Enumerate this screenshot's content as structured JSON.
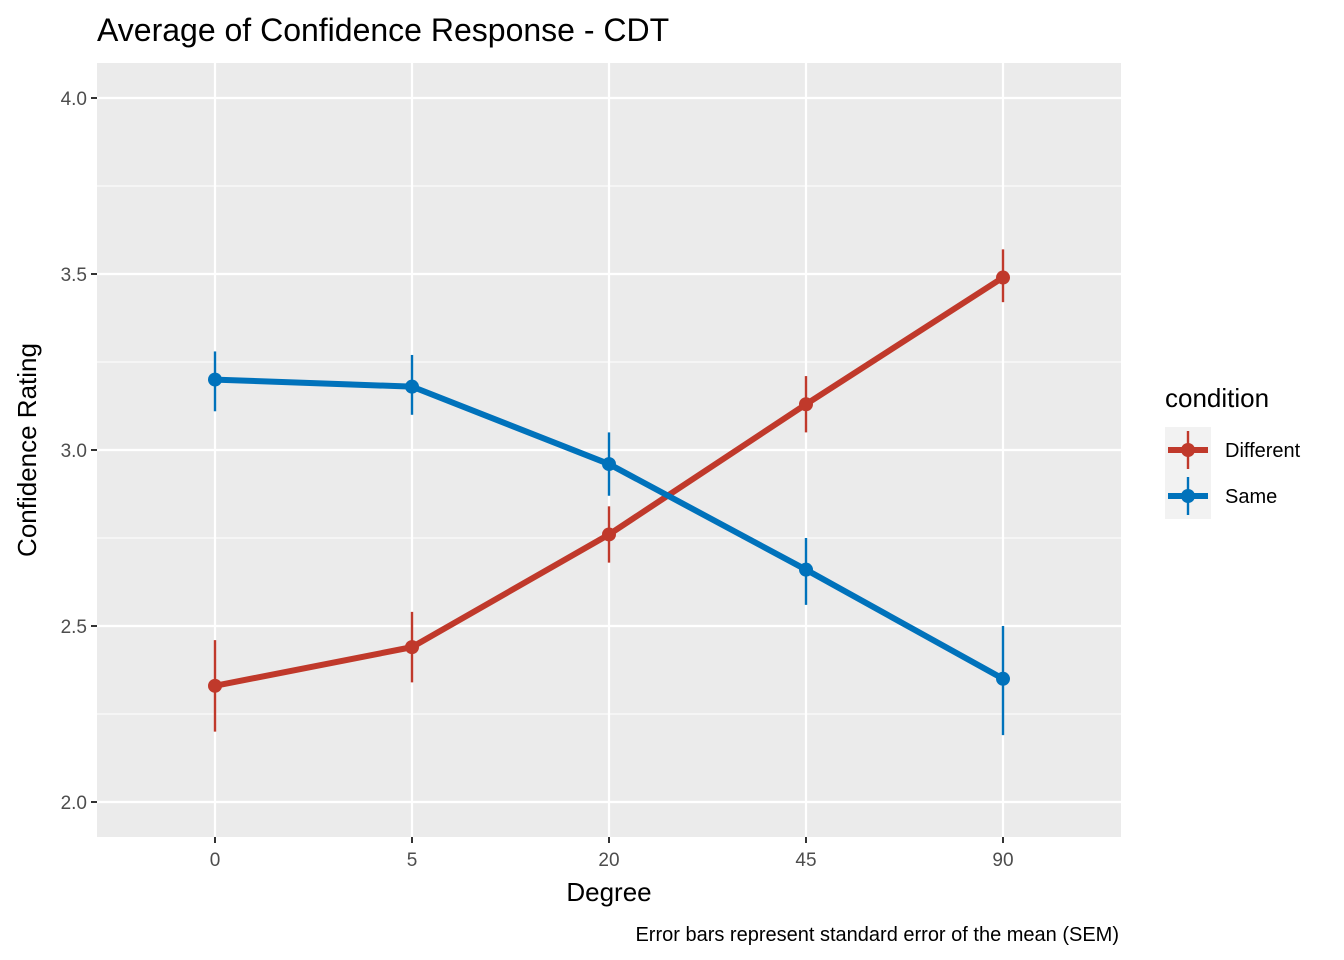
{
  "chart_data": {
    "type": "line",
    "title": "Average of Confidence Response - CDT",
    "xlabel": "Degree",
    "ylabel": "Confidence Rating",
    "caption": "Error bars represent standard error of the mean (SEM)",
    "categories": [
      "0",
      "5",
      "20",
      "45",
      "90"
    ],
    "ylim": [
      1.9,
      4.1
    ],
    "yticks": [
      "2.0",
      "2.5",
      "3.0",
      "3.5",
      "4.0"
    ],
    "ytick_values": [
      2.0,
      2.5,
      3.0,
      3.5,
      4.0
    ],
    "grid": true,
    "legend": {
      "title": "condition",
      "position": "right"
    },
    "series": [
      {
        "name": "Different",
        "color": "#c0392b",
        "values": [
          2.33,
          2.44,
          2.76,
          3.13,
          3.49
        ],
        "error_low": [
          2.2,
          2.34,
          2.68,
          3.05,
          3.42
        ],
        "error_high": [
          2.46,
          2.54,
          2.84,
          3.21,
          3.57
        ]
      },
      {
        "name": "Same",
        "color": "#0072bb",
        "values": [
          3.2,
          3.18,
          2.96,
          2.66,
          2.35
        ],
        "error_low": [
          3.11,
          3.1,
          2.87,
          2.56,
          2.19
        ],
        "error_high": [
          3.28,
          3.27,
          3.05,
          2.75,
          2.5
        ]
      }
    ]
  }
}
